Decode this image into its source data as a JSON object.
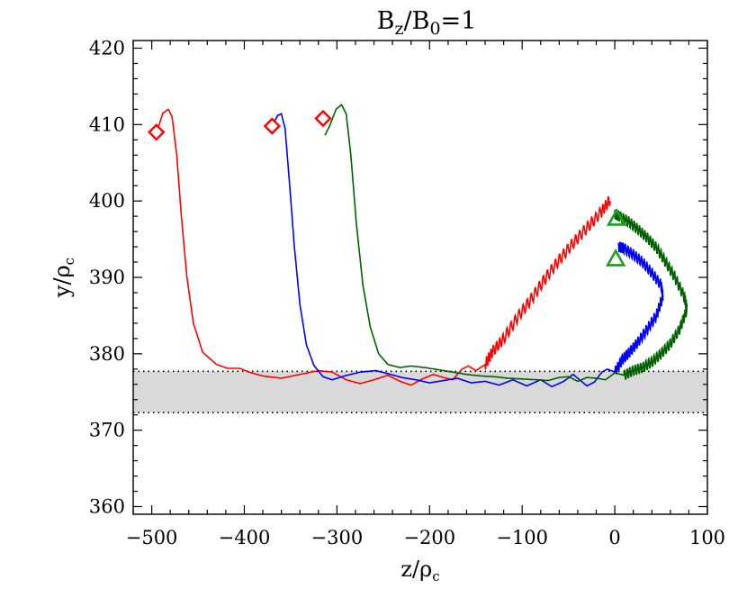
{
  "chart_data": {
    "type": "line",
    "title": {
      "main1": "B",
      "sub1": "z",
      "slash": "/B",
      "sub2": "0",
      "rest": "=1"
    },
    "xlabel": {
      "main": "z/ρ",
      "sub": "c"
    },
    "ylabel": {
      "main": "y/ρ",
      "sub": "c"
    },
    "xlim": [
      -520,
      100
    ],
    "ylim": [
      359,
      421
    ],
    "xticks": [
      -500,
      -400,
      -300,
      -200,
      -100,
      0,
      100
    ],
    "xtick_labels": [
      "−500",
      "−400",
      "−300",
      "−200",
      "−100",
      "0",
      "100"
    ],
    "yticks": [
      360,
      370,
      380,
      390,
      400,
      410,
      420
    ],
    "ytick_labels": [
      "360",
      "370",
      "380",
      "390",
      "400",
      "410",
      "420"
    ],
    "band": {
      "y_low": 372.3,
      "y_high": 377.7,
      "color": "#d9d9d9"
    },
    "series": [
      {
        "color": "#ff0000",
        "start_marker": "diamond",
        "start": [
          -495,
          409
        ],
        "points": [
          [
            -493,
            409.6
          ],
          [
            -488,
            411.5
          ],
          [
            -482,
            412
          ],
          [
            -478,
            411
          ],
          [
            -473,
            406
          ],
          [
            -468,
            398
          ],
          [
            -462,
            390
          ],
          [
            -455,
            384
          ],
          [
            -445,
            380.2
          ],
          [
            -430,
            378.6
          ],
          [
            -418,
            378.1
          ],
          [
            -405,
            378.1
          ],
          [
            -395,
            377.6
          ],
          [
            -380,
            377.1
          ],
          [
            -360,
            376.8
          ],
          [
            -340,
            377.3
          ],
          [
            -320,
            377.8
          ],
          [
            -305,
            377.6
          ],
          [
            -290,
            376.6
          ],
          [
            -275,
            376.1
          ],
          [
            -260,
            376.6
          ],
          [
            -245,
            377.2
          ],
          [
            -232,
            376.4
          ],
          [
            -220,
            375.9
          ],
          [
            -208,
            376.7
          ],
          [
            -196,
            377.3
          ],
          [
            -185,
            376.9
          ],
          [
            -175,
            376.6
          ],
          [
            -165,
            378
          ],
          [
            -158,
            378.4
          ],
          [
            -150,
            377.8
          ],
          [
            -140,
            378.6
          ],
          [
            -132,
            380.3
          ],
          [
            -120,
            382
          ],
          [
            -105,
            384.8
          ],
          [
            -90,
            387.2
          ],
          [
            -75,
            389.9
          ],
          [
            -60,
            392.3
          ],
          [
            -45,
            394.5
          ],
          [
            -30,
            396.5
          ],
          [
            -15,
            398.5
          ],
          [
            -5,
            400.2
          ]
        ],
        "wiggle_after_x": -140,
        "wiggle_amp": 1.5
      },
      {
        "color": "#0000ff",
        "start_marker": "diamond",
        "start": [
          -370,
          409.8
        ],
        "points": [
          [
            -368,
            410.3
          ],
          [
            -364,
            411.2
          ],
          [
            -360,
            411.4
          ],
          [
            -356,
            409.5
          ],
          [
            -351,
            402
          ],
          [
            -346,
            394
          ],
          [
            -340,
            386.5
          ],
          [
            -333,
            381.2
          ],
          [
            -325,
            378.5
          ],
          [
            -315,
            377
          ],
          [
            -305,
            376.6
          ],
          [
            -292,
            377.1
          ],
          [
            -275,
            377.6
          ],
          [
            -258,
            377.8
          ],
          [
            -245,
            377.4
          ],
          [
            -230,
            376.9
          ],
          [
            -215,
            376.6
          ],
          [
            -200,
            376.2
          ],
          [
            -185,
            376.5
          ],
          [
            -170,
            376.8
          ],
          [
            -155,
            376.2
          ],
          [
            -140,
            376.4
          ],
          [
            -125,
            375.9
          ],
          [
            -110,
            376.6
          ],
          [
            -95,
            375.8
          ],
          [
            -80,
            376.6
          ],
          [
            -68,
            375.7
          ],
          [
            -55,
            376.4
          ],
          [
            -45,
            377.3
          ],
          [
            -38,
            376.6
          ],
          [
            -30,
            375.8
          ],
          [
            -22,
            376.3
          ],
          [
            -14,
            377.6
          ],
          [
            -8,
            378
          ],
          [
            0,
            377.6
          ],
          [
            8,
            379.2
          ],
          [
            16,
            380.2
          ],
          [
            25,
            381.5
          ],
          [
            35,
            383.2
          ],
          [
            45,
            385
          ],
          [
            52,
            387.5
          ],
          [
            50,
            389
          ],
          [
            40,
            390.6
          ],
          [
            30,
            392
          ],
          [
            20,
            393
          ],
          [
            10,
            393.8
          ],
          [
            4,
            394
          ]
        ],
        "wiggle_after_x": 0,
        "wiggle_amp": 1.4
      },
      {
        "color": "#006000",
        "start_marker": "diamond",
        "start": [
          -315,
          410.8
        ],
        "points": [
          [
            -313,
            408.6
          ],
          [
            -308,
            409.8
          ],
          [
            -301,
            412
          ],
          [
            -295,
            412.6
          ],
          [
            -290,
            411.4
          ],
          [
            -285,
            406
          ],
          [
            -279,
            397
          ],
          [
            -272,
            389
          ],
          [
            -264,
            383.5
          ],
          [
            -255,
            380
          ],
          [
            -245,
            378.6
          ],
          [
            -232,
            378.2
          ],
          [
            -220,
            378.4
          ],
          [
            -205,
            378.2
          ],
          [
            -190,
            377.9
          ],
          [
            -175,
            377.6
          ],
          [
            -160,
            377.3
          ],
          [
            -145,
            377.1
          ],
          [
            -130,
            377
          ],
          [
            -115,
            376.8
          ],
          [
            -100,
            376.7
          ],
          [
            -85,
            376.6
          ],
          [
            -72,
            376.5
          ],
          [
            -60,
            376.9
          ],
          [
            -50,
            377
          ],
          [
            -40,
            376.4
          ],
          [
            -30,
            376.9
          ],
          [
            -20,
            376.8
          ],
          [
            -10,
            376.6
          ],
          [
            0,
            377.5
          ],
          [
            10,
            377.2
          ],
          [
            20,
            377.8
          ],
          [
            30,
            378.2
          ],
          [
            40,
            378.9
          ],
          [
            50,
            380
          ],
          [
            60,
            381.3
          ],
          [
            70,
            383.2
          ],
          [
            78,
            385.8
          ],
          [
            75,
            387.5
          ],
          [
            65,
            390
          ],
          [
            55,
            392
          ],
          [
            45,
            393.9
          ],
          [
            35,
            395.2
          ],
          [
            25,
            396.3
          ],
          [
            15,
            397.3
          ],
          [
            5,
            398
          ],
          [
            0,
            398.3
          ]
        ],
        "wiggle_after_x": 10,
        "wiggle_amp": 1.4
      }
    ],
    "end_markers": [
      {
        "shape": "triangle",
        "color": "#1aa11a",
        "x": 2,
        "y": 397.7
      },
      {
        "shape": "triangle",
        "color": "#1aa11a",
        "x": 1,
        "y": 392.4
      }
    ]
  }
}
